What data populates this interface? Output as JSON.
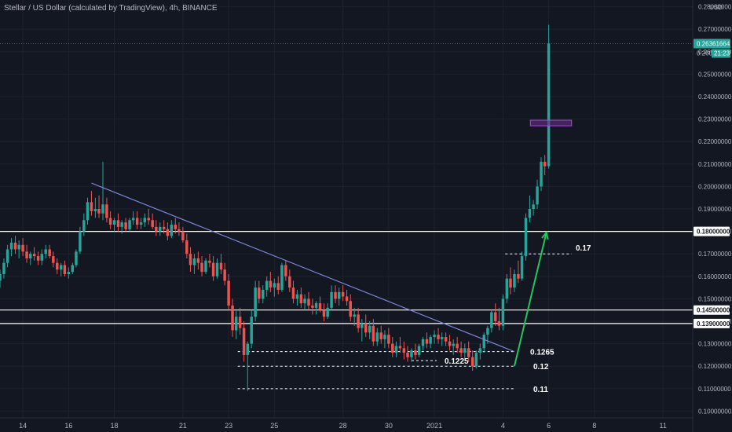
{
  "header": {
    "title": "Stellar / US Dollar (calculated by TradingView), 4h, BINANCE",
    "currency": "USD"
  },
  "colors": {
    "background": "#131722",
    "up": "#26a69a",
    "down": "#ef5350",
    "grid": "#1e222d",
    "axis_text": "#b2b5be",
    "trendline": "#7b83d6",
    "arrow": "#22c55e",
    "zone_fill": "#6a2a8a",
    "zone_stroke": "#a64dcc",
    "last_price": "#26a69a"
  },
  "price_tags": {
    "last_price": "0.26361664",
    "last_price_partial": "0.260",
    "countdown": "21:23"
  },
  "chart_data": {
    "type": "candlestick",
    "title": "Stellar / US Dollar (calculated by TradingView), 4h, BINANCE",
    "interval": "4h",
    "exchange": "BINANCE",
    "ylabel": "USD",
    "ylim": [
      0.097,
      0.283
    ],
    "y_ticks": [
      "0.10000000",
      "0.11000000",
      "0.12000000",
      "0.13000000",
      "0.14000000",
      "0.15000000",
      "0.16000000",
      "0.17000000",
      "0.18000000",
      "0.19000000",
      "0.20000000",
      "0.21000000",
      "0.22000000",
      "0.23000000",
      "0.24000000",
      "0.25000000",
      "0.26000000",
      "0.27000000",
      "0.28000000"
    ],
    "x_ticks": [
      "14",
      "16",
      "18",
      "21",
      "23",
      "25",
      "28",
      "30",
      "2021",
      "4",
      "6",
      "8",
      "11"
    ],
    "x_tick_positions": [
      14,
      16,
      18,
      21,
      23,
      25,
      28,
      30,
      32,
      35,
      37,
      39,
      42
    ],
    "xlim": [
      13,
      43.3
    ],
    "grid": false,
    "horizontal_levels": [
      {
        "label": "0.18000000",
        "value": 0.18
      },
      {
        "label": "0.14500000",
        "value": 0.145
      },
      {
        "label": "0.13900000",
        "value": 0.139
      }
    ],
    "dashed_levels": [
      {
        "label": "0.1265",
        "value": 0.1265,
        "x_start": 23.4,
        "x_end": 35.5
      },
      {
        "label": "0.1225",
        "value": 0.1225,
        "x_start": 31.0,
        "x_end": 32.1
      },
      {
        "label": "0.12",
        "value": 0.12,
        "x_start": 23.4,
        "x_end": 35.5
      },
      {
        "label": "0.11",
        "value": 0.11,
        "x_start": 23.4,
        "x_end": 35.5
      },
      {
        "label": "0.17",
        "value": 0.17,
        "x_start": 35.1,
        "x_end": 38.0
      }
    ],
    "trendline": {
      "x1": 17.0,
      "y1": 0.2015,
      "x2": 35.5,
      "y2": 0.1265
    },
    "zone": {
      "x1": 36.2,
      "x2": 38.0,
      "y_low": 0.227,
      "y_high": 0.2295
    },
    "arrow": {
      "x1": 35.5,
      "y1": 0.12,
      "x2": 36.9,
      "y2": 0.1795
    },
    "annotations": [
      "0.17",
      "0.1265",
      "0.1225",
      "0.12",
      "0.11"
    ],
    "ohlc": [
      [
        13.0,
        0.158,
        0.163,
        0.155,
        0.161
      ],
      [
        13.17,
        0.161,
        0.168,
        0.159,
        0.166
      ],
      [
        13.33,
        0.166,
        0.174,
        0.164,
        0.172
      ],
      [
        13.5,
        0.172,
        0.177,
        0.169,
        0.175
      ],
      [
        13.67,
        0.175,
        0.178,
        0.17,
        0.172
      ],
      [
        13.83,
        0.172,
        0.176,
        0.168,
        0.174
      ],
      [
        14.0,
        0.174,
        0.177,
        0.169,
        0.171
      ],
      [
        14.17,
        0.171,
        0.174,
        0.166,
        0.168
      ],
      [
        14.33,
        0.168,
        0.171,
        0.165,
        0.17
      ],
      [
        14.5,
        0.17,
        0.173,
        0.167,
        0.169
      ],
      [
        14.67,
        0.169,
        0.171,
        0.165,
        0.167
      ],
      [
        14.83,
        0.167,
        0.172,
        0.165,
        0.17
      ],
      [
        15.0,
        0.17,
        0.174,
        0.168,
        0.172
      ],
      [
        15.17,
        0.172,
        0.174,
        0.168,
        0.169
      ],
      [
        15.33,
        0.169,
        0.171,
        0.164,
        0.166
      ],
      [
        15.5,
        0.166,
        0.168,
        0.161,
        0.163
      ],
      [
        15.67,
        0.163,
        0.166,
        0.16,
        0.165
      ],
      [
        15.83,
        0.165,
        0.167,
        0.16,
        0.161
      ],
      [
        16.0,
        0.161,
        0.164,
        0.159,
        0.162
      ],
      [
        16.17,
        0.162,
        0.166,
        0.161,
        0.165
      ],
      [
        16.33,
        0.165,
        0.172,
        0.164,
        0.171
      ],
      [
        16.5,
        0.171,
        0.182,
        0.17,
        0.18
      ],
      [
        16.67,
        0.18,
        0.188,
        0.178,
        0.185
      ],
      [
        16.83,
        0.185,
        0.195,
        0.183,
        0.193
      ],
      [
        17.0,
        0.193,
        0.198,
        0.187,
        0.189
      ],
      [
        17.17,
        0.189,
        0.195,
        0.186,
        0.19
      ],
      [
        17.33,
        0.19,
        0.196,
        0.186,
        0.188
      ],
      [
        17.5,
        0.188,
        0.211,
        0.185,
        0.192
      ],
      [
        17.67,
        0.192,
        0.195,
        0.184,
        0.186
      ],
      [
        17.83,
        0.186,
        0.189,
        0.181,
        0.183
      ],
      [
        18.0,
        0.183,
        0.186,
        0.18,
        0.185
      ],
      [
        18.17,
        0.185,
        0.188,
        0.18,
        0.182
      ],
      [
        18.33,
        0.182,
        0.185,
        0.179,
        0.184
      ],
      [
        18.5,
        0.184,
        0.186,
        0.18,
        0.181
      ],
      [
        18.67,
        0.181,
        0.186,
        0.18,
        0.185
      ],
      [
        18.83,
        0.185,
        0.189,
        0.183,
        0.186
      ],
      [
        19.0,
        0.186,
        0.189,
        0.181,
        0.183
      ],
      [
        19.17,
        0.183,
        0.186,
        0.181,
        0.184
      ],
      [
        19.33,
        0.184,
        0.188,
        0.182,
        0.186
      ],
      [
        19.5,
        0.186,
        0.19,
        0.183,
        0.185
      ],
      [
        19.67,
        0.185,
        0.188,
        0.181,
        0.182
      ],
      [
        19.83,
        0.182,
        0.185,
        0.178,
        0.18
      ],
      [
        20.0,
        0.18,
        0.184,
        0.178,
        0.182
      ],
      [
        20.17,
        0.182,
        0.185,
        0.179,
        0.181
      ],
      [
        20.33,
        0.181,
        0.184,
        0.176,
        0.178
      ],
      [
        20.5,
        0.178,
        0.185,
        0.177,
        0.183
      ],
      [
        20.67,
        0.183,
        0.186,
        0.179,
        0.181
      ],
      [
        20.83,
        0.181,
        0.184,
        0.178,
        0.18
      ],
      [
        21.0,
        0.18,
        0.182,
        0.175,
        0.176
      ],
      [
        21.17,
        0.176,
        0.179,
        0.168,
        0.17
      ],
      [
        21.33,
        0.17,
        0.173,
        0.162,
        0.165
      ],
      [
        21.5,
        0.165,
        0.17,
        0.161,
        0.168
      ],
      [
        21.67,
        0.168,
        0.171,
        0.163,
        0.166
      ],
      [
        21.83,
        0.166,
        0.169,
        0.16,
        0.162
      ],
      [
        22.0,
        0.162,
        0.168,
        0.161,
        0.167
      ],
      [
        22.17,
        0.167,
        0.17,
        0.164,
        0.166
      ],
      [
        22.33,
        0.166,
        0.169,
        0.158,
        0.16
      ],
      [
        22.5,
        0.16,
        0.168,
        0.159,
        0.166
      ],
      [
        22.67,
        0.166,
        0.17,
        0.161,
        0.163
      ],
      [
        22.83,
        0.163,
        0.166,
        0.156,
        0.158
      ],
      [
        23.0,
        0.158,
        0.161,
        0.145,
        0.147
      ],
      [
        23.17,
        0.147,
        0.15,
        0.133,
        0.136
      ],
      [
        23.33,
        0.136,
        0.145,
        0.132,
        0.142
      ],
      [
        23.5,
        0.142,
        0.146,
        0.134,
        0.137
      ],
      [
        23.67,
        0.137,
        0.14,
        0.122,
        0.125
      ],
      [
        23.83,
        0.125,
        0.131,
        0.109,
        0.13
      ],
      [
        24.0,
        0.13,
        0.145,
        0.128,
        0.142
      ],
      [
        24.17,
        0.142,
        0.158,
        0.14,
        0.155
      ],
      [
        24.33,
        0.155,
        0.158,
        0.148,
        0.15
      ],
      [
        24.5,
        0.15,
        0.156,
        0.148,
        0.154
      ],
      [
        24.67,
        0.154,
        0.16,
        0.151,
        0.158
      ],
      [
        24.83,
        0.158,
        0.162,
        0.153,
        0.155
      ],
      [
        25.0,
        0.155,
        0.159,
        0.151,
        0.157
      ],
      [
        25.17,
        0.157,
        0.16,
        0.152,
        0.154
      ],
      [
        25.33,
        0.154,
        0.166,
        0.153,
        0.165
      ],
      [
        25.5,
        0.165,
        0.167,
        0.158,
        0.16
      ],
      [
        25.67,
        0.16,
        0.163,
        0.153,
        0.155
      ],
      [
        25.83,
        0.155,
        0.158,
        0.148,
        0.15
      ],
      [
        26.0,
        0.15,
        0.154,
        0.147,
        0.152
      ],
      [
        26.17,
        0.152,
        0.155,
        0.146,
        0.148
      ],
      [
        26.33,
        0.148,
        0.152,
        0.145,
        0.15
      ],
      [
        26.5,
        0.15,
        0.153,
        0.145,
        0.147
      ],
      [
        26.67,
        0.147,
        0.15,
        0.143,
        0.146
      ],
      [
        26.83,
        0.146,
        0.149,
        0.143,
        0.148
      ],
      [
        27.0,
        0.148,
        0.151,
        0.144,
        0.145
      ],
      [
        27.17,
        0.145,
        0.148,
        0.14,
        0.142
      ],
      [
        27.33,
        0.142,
        0.148,
        0.141,
        0.146
      ],
      [
        27.5,
        0.146,
        0.156,
        0.145,
        0.153
      ],
      [
        27.67,
        0.153,
        0.156,
        0.148,
        0.15
      ],
      [
        27.83,
        0.15,
        0.155,
        0.147,
        0.153
      ],
      [
        28.0,
        0.153,
        0.156,
        0.149,
        0.151
      ],
      [
        28.17,
        0.151,
        0.154,
        0.147,
        0.149
      ],
      [
        28.33,
        0.149,
        0.152,
        0.14,
        0.142
      ],
      [
        28.5,
        0.142,
        0.146,
        0.138,
        0.143
      ],
      [
        28.67,
        0.143,
        0.146,
        0.135,
        0.137
      ],
      [
        28.83,
        0.137,
        0.141,
        0.131,
        0.139
      ],
      [
        29.0,
        0.139,
        0.143,
        0.133,
        0.135
      ],
      [
        29.17,
        0.135,
        0.14,
        0.132,
        0.138
      ],
      [
        29.33,
        0.138,
        0.141,
        0.129,
        0.131
      ],
      [
        29.5,
        0.131,
        0.137,
        0.129,
        0.135
      ],
      [
        29.67,
        0.135,
        0.138,
        0.13,
        0.132
      ],
      [
        29.83,
        0.132,
        0.136,
        0.128,
        0.134
      ],
      [
        30.0,
        0.134,
        0.137,
        0.128,
        0.13
      ],
      [
        30.17,
        0.13,
        0.133,
        0.124,
        0.126
      ],
      [
        30.33,
        0.126,
        0.131,
        0.124,
        0.129
      ],
      [
        30.5,
        0.129,
        0.133,
        0.126,
        0.128
      ],
      [
        30.67,
        0.128,
        0.131,
        0.123,
        0.126
      ],
      [
        30.83,
        0.126,
        0.129,
        0.122,
        0.124
      ],
      [
        31.0,
        0.124,
        0.128,
        0.122,
        0.127
      ],
      [
        31.17,
        0.127,
        0.13,
        0.123,
        0.125
      ],
      [
        31.33,
        0.125,
        0.13,
        0.124,
        0.129
      ],
      [
        31.5,
        0.129,
        0.133,
        0.127,
        0.132
      ],
      [
        31.67,
        0.132,
        0.135,
        0.128,
        0.13
      ],
      [
        31.83,
        0.13,
        0.134,
        0.128,
        0.133
      ],
      [
        32.0,
        0.133,
        0.136,
        0.13,
        0.134
      ],
      [
        32.17,
        0.134,
        0.137,
        0.13,
        0.132
      ],
      [
        32.33,
        0.132,
        0.135,
        0.129,
        0.133
      ],
      [
        32.5,
        0.133,
        0.135,
        0.129,
        0.131
      ],
      [
        32.67,
        0.131,
        0.134,
        0.127,
        0.129
      ],
      [
        32.83,
        0.129,
        0.132,
        0.125,
        0.13
      ],
      [
        33.0,
        0.13,
        0.133,
        0.126,
        0.128
      ],
      [
        33.17,
        0.128,
        0.131,
        0.124,
        0.126
      ],
      [
        33.33,
        0.126,
        0.13,
        0.123,
        0.128
      ],
      [
        33.5,
        0.128,
        0.131,
        0.122,
        0.124
      ],
      [
        33.67,
        0.124,
        0.127,
        0.118,
        0.12
      ],
      [
        33.83,
        0.12,
        0.127,
        0.119,
        0.126
      ],
      [
        34.0,
        0.126,
        0.13,
        0.123,
        0.128
      ],
      [
        34.17,
        0.128,
        0.135,
        0.126,
        0.134
      ],
      [
        34.33,
        0.134,
        0.138,
        0.13,
        0.137
      ],
      [
        34.5,
        0.137,
        0.145,
        0.135,
        0.144
      ],
      [
        34.67,
        0.144,
        0.148,
        0.138,
        0.14
      ],
      [
        34.83,
        0.14,
        0.146,
        0.136,
        0.138
      ],
      [
        35.0,
        0.138,
        0.152,
        0.136,
        0.15
      ],
      [
        35.17,
        0.15,
        0.161,
        0.148,
        0.159
      ],
      [
        35.33,
        0.159,
        0.164,
        0.152,
        0.155
      ],
      [
        35.5,
        0.155,
        0.163,
        0.153,
        0.161
      ],
      [
        35.67,
        0.161,
        0.167,
        0.157,
        0.159
      ],
      [
        35.83,
        0.159,
        0.171,
        0.158,
        0.169
      ],
      [
        36.0,
        0.169,
        0.188,
        0.167,
        0.186
      ],
      [
        36.17,
        0.186,
        0.196,
        0.184,
        0.19
      ],
      [
        36.33,
        0.19,
        0.194,
        0.187,
        0.192
      ],
      [
        36.5,
        0.192,
        0.203,
        0.19,
        0.2
      ],
      [
        36.67,
        0.2,
        0.213,
        0.198,
        0.211
      ],
      [
        36.83,
        0.211,
        0.214,
        0.205,
        0.209
      ],
      [
        37.0,
        0.209,
        0.272,
        0.208,
        0.2636
      ]
    ]
  }
}
